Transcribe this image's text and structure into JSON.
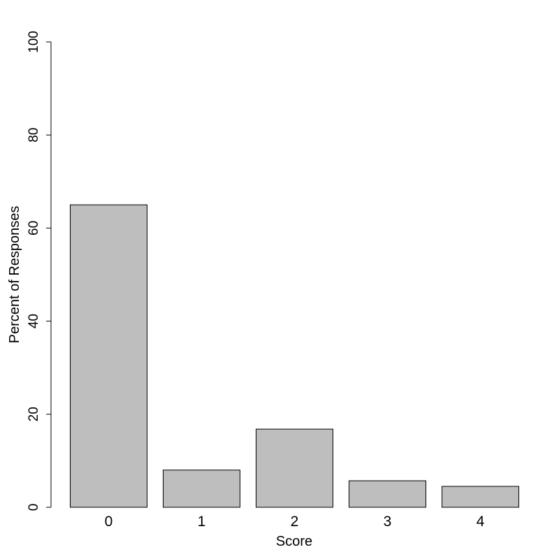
{
  "chart_data": {
    "type": "bar",
    "x_label": "Score",
    "y_label": "Percent of Responses",
    "categories": [
      "0",
      "1",
      "2",
      "3",
      "4"
    ],
    "values": [
      65,
      8,
      16.8,
      5.7,
      4.5
    ],
    "color": "#bebebe",
    "ylim": [
      0,
      100
    ],
    "yticks": [
      0,
      20,
      40,
      60,
      80,
      100
    ]
  }
}
